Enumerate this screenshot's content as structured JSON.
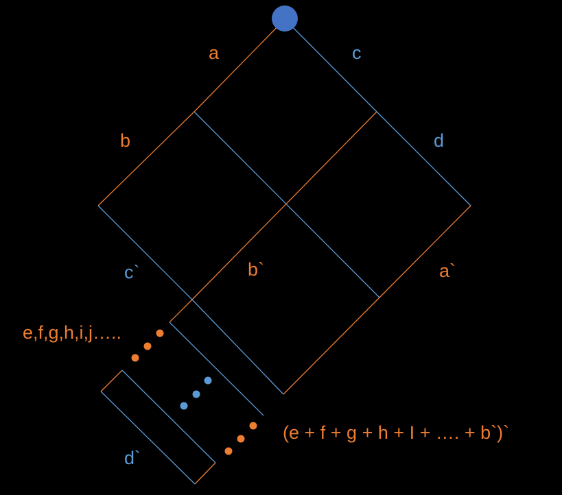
{
  "colors": {
    "background": "#000000",
    "orange": "#ED7D31",
    "blue": "#5B9BD5",
    "node": "#4472C4"
  },
  "labels": {
    "a": "a",
    "c": "c",
    "b": "b",
    "d": "d",
    "c_prime": "c`",
    "b_prime": "b`",
    "a_prime": "a`",
    "sequence": "e,f,g,h,i,j…..",
    "d_prime": "d`",
    "sum_expression": "(e + f + g + h + I + …. + b`)`"
  }
}
